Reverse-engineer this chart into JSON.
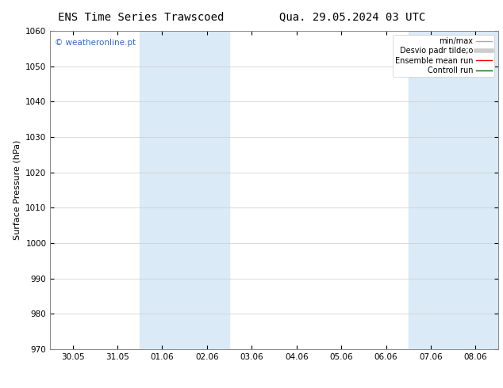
{
  "title_left": "ENS Time Series Trawscoed",
  "title_right": "Qua. 29.05.2024 03 UTC",
  "ylabel": "Surface Pressure (hPa)",
  "ylim": [
    970,
    1060
  ],
  "yticks": [
    970,
    980,
    990,
    1000,
    1010,
    1020,
    1030,
    1040,
    1050,
    1060
  ],
  "x_tick_labels": [
    "30.05",
    "31.05",
    "01.06",
    "02.06",
    "03.06",
    "04.06",
    "05.06",
    "06.06",
    "07.06",
    "08.06"
  ],
  "x_tick_positions": [
    0,
    1,
    2,
    3,
    4,
    5,
    6,
    7,
    8,
    9
  ],
  "xlim": [
    -0.5,
    9.5
  ],
  "shaded_bands": [
    {
      "x_start": 1.5,
      "x_end": 3.5
    },
    {
      "x_start": 7.5,
      "x_end": 9.5
    }
  ],
  "shaded_color": "#daeaf7",
  "shaded_alpha": 1.0,
  "watermark_text": "© weatheronline.pt",
  "watermark_color": "#3366cc",
  "legend_entries": [
    {
      "label": "min/max",
      "color": "#aaaaaa",
      "lw": 1.0
    },
    {
      "label": "Desvio padr tilde;o",
      "color": "#cccccc",
      "lw": 4.0
    },
    {
      "label": "Ensemble mean run",
      "color": "#ff0000",
      "lw": 1.0
    },
    {
      "label": "Controll run",
      "color": "#006600",
      "lw": 1.0
    }
  ],
  "bg_color": "#ffffff",
  "grid_color": "#cccccc",
  "title_fontsize": 10,
  "tick_fontsize": 7.5,
  "ylabel_fontsize": 8,
  "legend_fontsize": 7,
  "watermark_fontsize": 7.5
}
